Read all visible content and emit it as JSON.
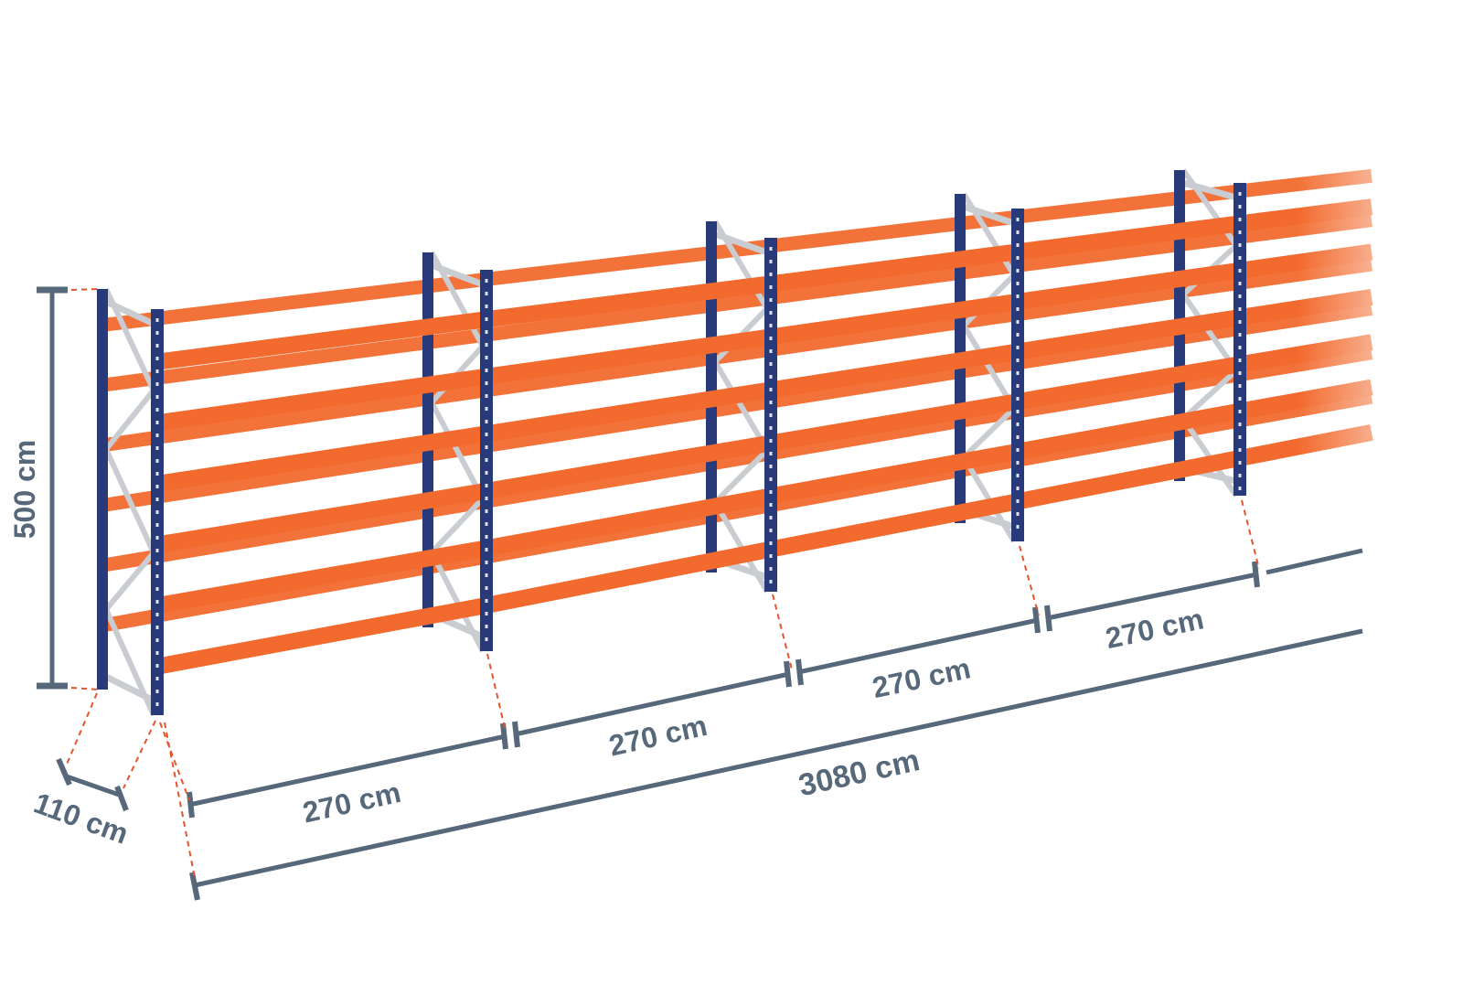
{
  "dimensions": {
    "height": "500 cm",
    "depth": "110 cm",
    "bay_widths": [
      "270 cm",
      "270 cm",
      "270 cm",
      "270 cm"
    ],
    "total_length": "3080 cm"
  },
  "colors": {
    "beam": "#f26a2e",
    "upright": "#283a7a",
    "bracing": "#c9ccd1",
    "dimension_line": "#56687a",
    "guide_line": "#e8542a"
  }
}
